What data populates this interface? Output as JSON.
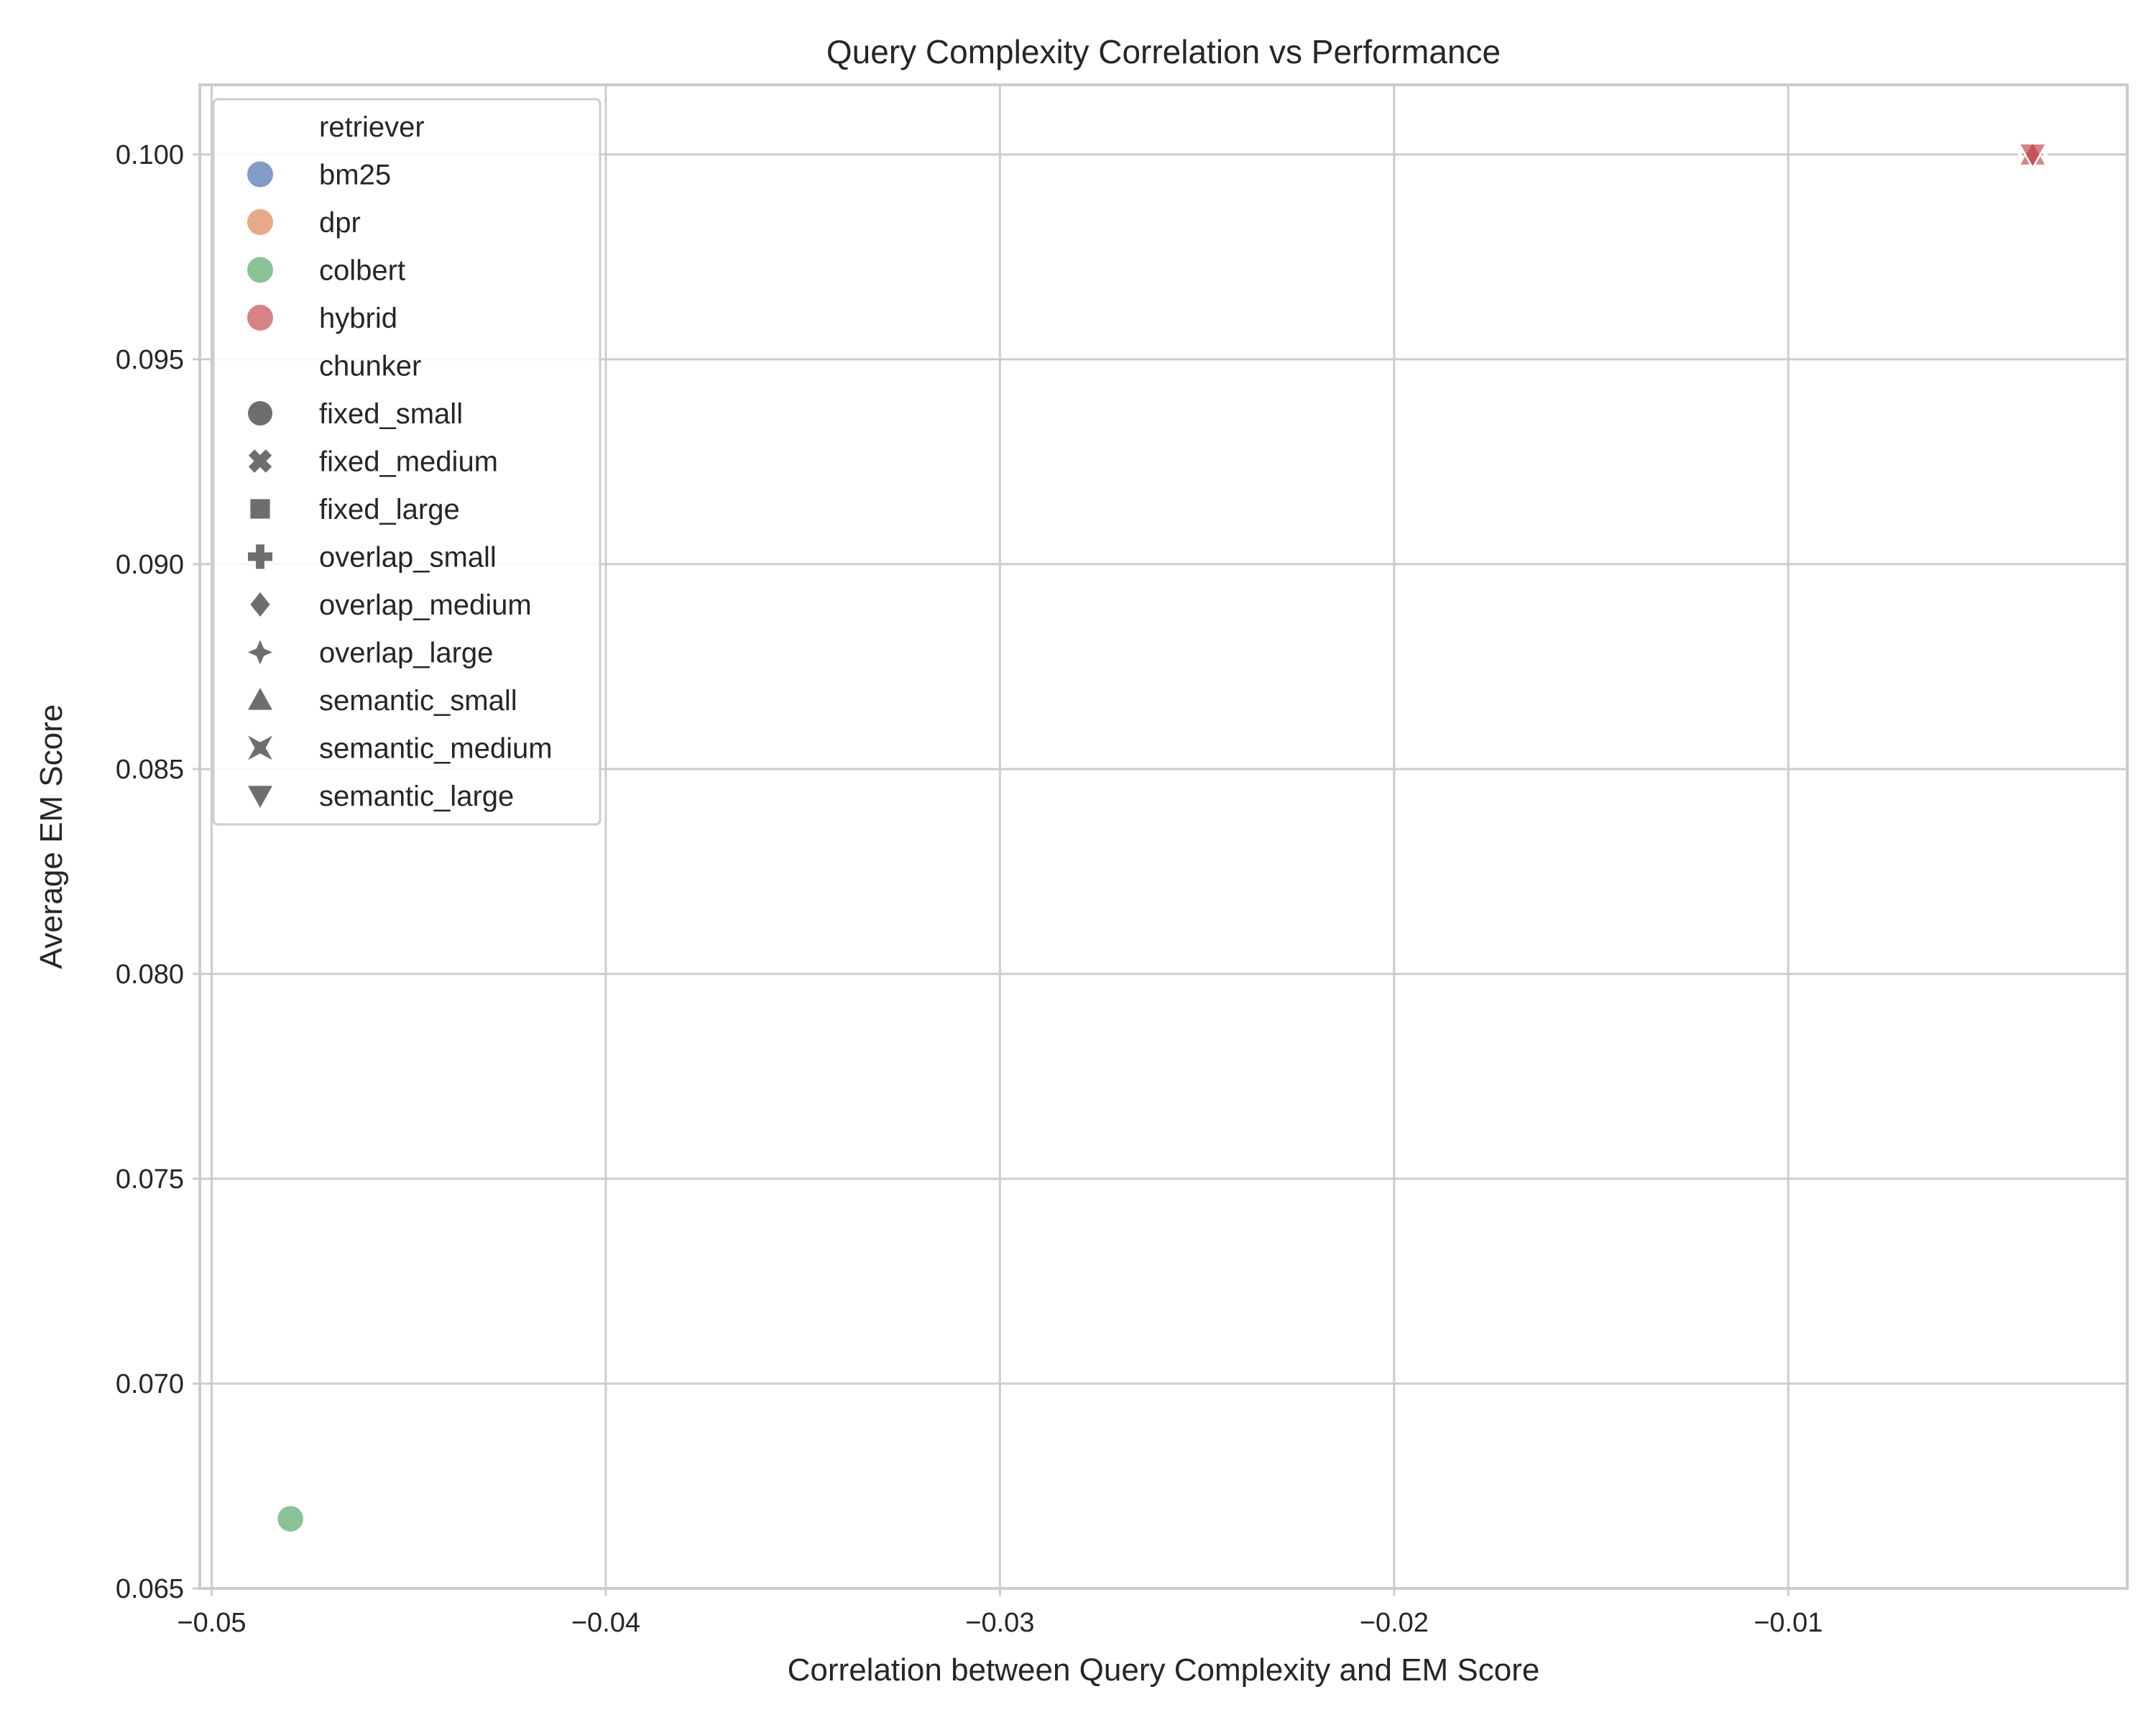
{
  "chart_data": {
    "type": "scatter",
    "title": "Query Complexity Correlation vs Performance",
    "xlabel": "Correlation between Query Complexity and EM Score",
    "ylabel": "Average EM Score",
    "xlim": [
      -0.0503,
      -0.0014
    ],
    "ylim": [
      0.065,
      0.1017
    ],
    "xticks": [
      -0.05,
      -0.04,
      -0.03,
      -0.02,
      -0.01
    ],
    "xtick_labels": [
      "−0.05",
      "−0.04",
      "−0.03",
      "−0.02",
      "−0.01"
    ],
    "yticks": [
      0.065,
      0.07,
      0.075,
      0.08,
      0.085,
      0.09,
      0.095,
      0.1
    ],
    "ytick_labels": [
      "0.065",
      "0.070",
      "0.075",
      "0.080",
      "0.085",
      "0.090",
      "0.095",
      "0.100"
    ],
    "grid": true,
    "legend_position": "top-left",
    "hue_title": "retriever",
    "hue_levels": [
      {
        "name": "bm25",
        "color": "#4c72b0"
      },
      {
        "name": "dpr",
        "color": "#dd8452"
      },
      {
        "name": "colbert",
        "color": "#55a868"
      },
      {
        "name": "hybrid",
        "color": "#c44e52"
      }
    ],
    "style_title": "chunker",
    "style_levels": [
      {
        "name": "fixed_small",
        "marker": "circle"
      },
      {
        "name": "fixed_medium",
        "marker": "x"
      },
      {
        "name": "fixed_large",
        "marker": "square"
      },
      {
        "name": "overlap_small",
        "marker": "plus"
      },
      {
        "name": "overlap_medium",
        "marker": "diamond"
      },
      {
        "name": "overlap_large",
        "marker": "star4"
      },
      {
        "name": "semantic_small",
        "marker": "triangle-up"
      },
      {
        "name": "semantic_medium",
        "marker": "star4-concave"
      },
      {
        "name": "semantic_large",
        "marker": "triangle-down"
      }
    ],
    "points": [
      {
        "x": -0.048,
        "y": 0.0667,
        "retriever": "colbert",
        "chunker": "fixed_small"
      },
      {
        "x": -0.0038,
        "y": 0.1,
        "retriever": "hybrid",
        "chunker": "overlap_large"
      },
      {
        "x": -0.0038,
        "y": 0.1,
        "retriever": "hybrid",
        "chunker": "semantic_small"
      },
      {
        "x": -0.0038,
        "y": 0.1,
        "retriever": "hybrid",
        "chunker": "semantic_large"
      }
    ]
  }
}
